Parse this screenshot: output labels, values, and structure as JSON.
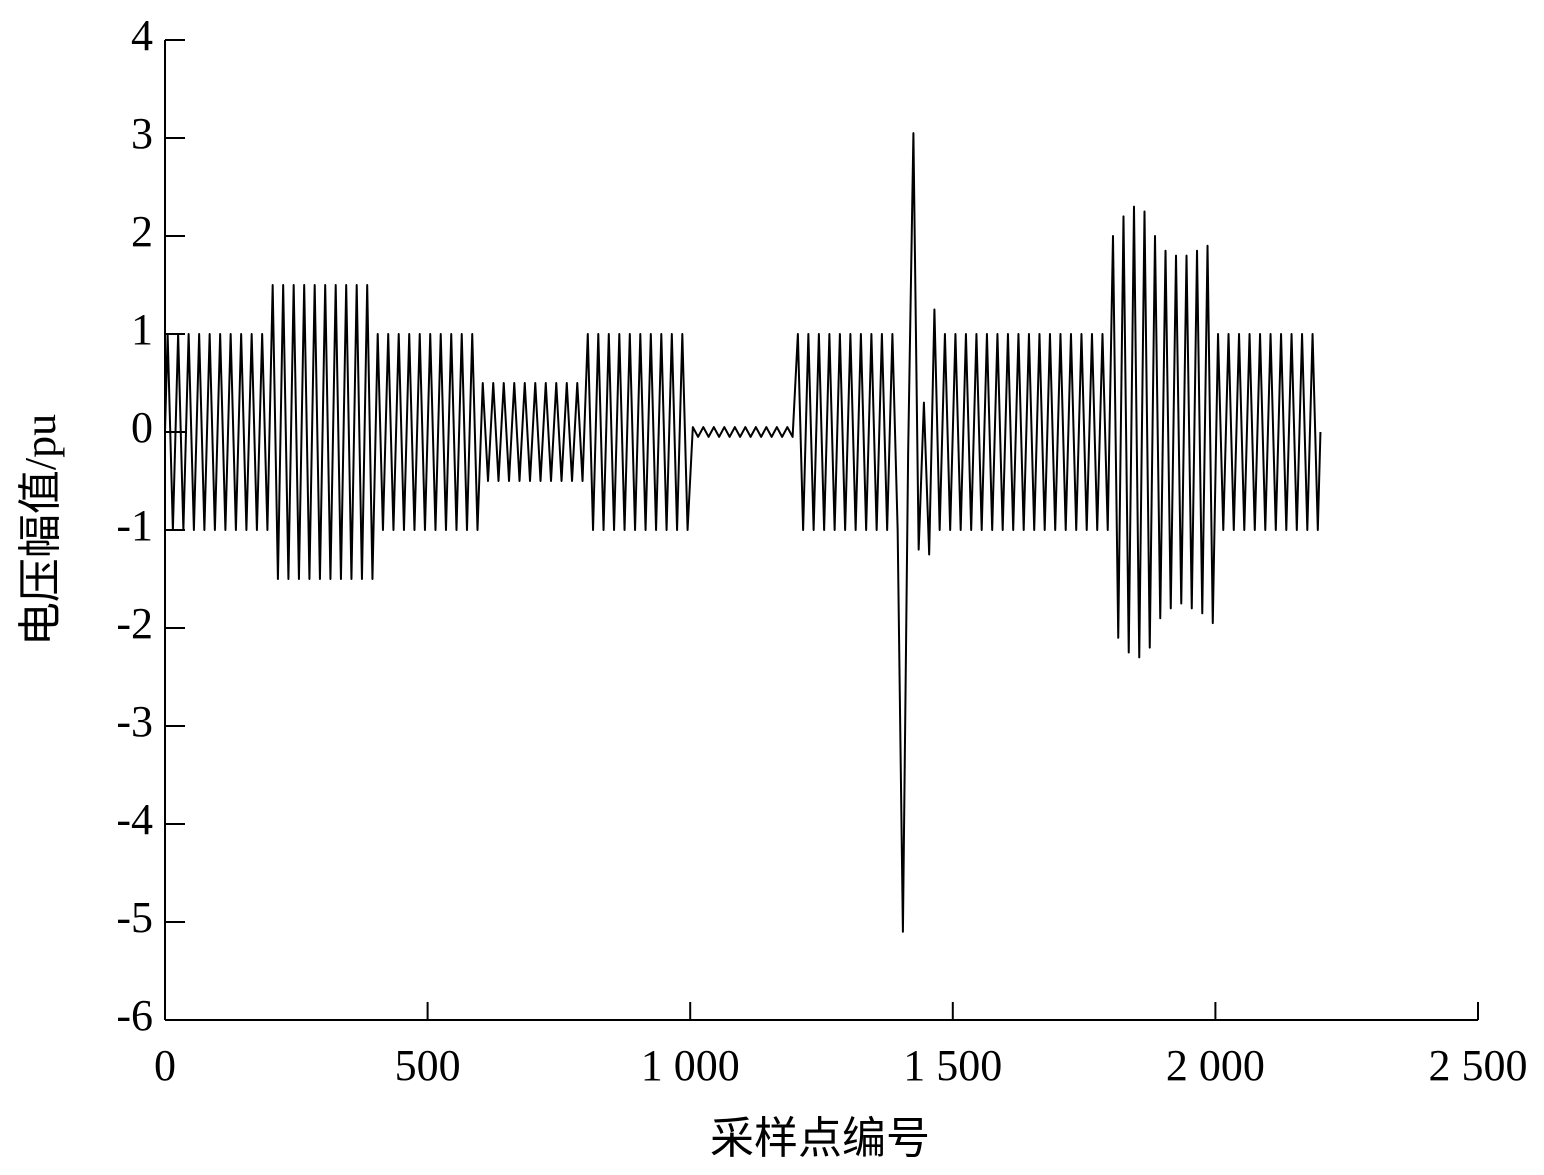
{
  "chart_data": {
    "type": "line",
    "x_label": "采样点编号",
    "y_label": "电压幅值/pu",
    "color": "#000000",
    "xlim": [
      0,
      2500
    ],
    "xticks": [
      0,
      500,
      {
        "value": 1000,
        "label": "1 000"
      },
      {
        "value": 1500,
        "label": "1 500"
      },
      {
        "value": 2000,
        "label": "2 000"
      },
      {
        "value": 2500,
        "label": "2 500"
      }
    ],
    "ylim": [
      -6,
      4
    ],
    "yticks": [
      -6,
      -5,
      -4,
      -3,
      -2,
      -1,
      0,
      1,
      2,
      3,
      4
    ],
    "x": [
      0,
      5,
      15,
      25,
      35,
      45,
      55,
      65,
      75,
      85,
      95,
      105,
      115,
      125,
      135,
      145,
      155,
      165,
      175,
      185,
      195,
      205,
      215,
      225,
      235,
      245,
      255,
      265,
      275,
      285,
      295,
      305,
      315,
      325,
      335,
      345,
      355,
      365,
      375,
      385,
      395,
      405,
      415,
      425,
      435,
      445,
      455,
      465,
      475,
      485,
      495,
      505,
      515,
      525,
      535,
      545,
      555,
      565,
      575,
      585,
      595,
      605,
      615,
      625,
      635,
      645,
      655,
      665,
      675,
      685,
      695,
      705,
      715,
      725,
      735,
      745,
      755,
      765,
      775,
      785,
      795,
      805,
      815,
      825,
      835,
      845,
      855,
      865,
      875,
      885,
      895,
      905,
      915,
      925,
      935,
      945,
      955,
      965,
      975,
      985,
      995,
      1005,
      1015,
      1025,
      1035,
      1045,
      1055,
      1065,
      1075,
      1085,
      1095,
      1105,
      1115,
      1125,
      1135,
      1145,
      1155,
      1165,
      1175,
      1185,
      1195,
      1205,
      1215,
      1225,
      1235,
      1245,
      1255,
      1265,
      1275,
      1285,
      1295,
      1305,
      1315,
      1325,
      1335,
      1345,
      1355,
      1365,
      1375,
      1385,
      1395,
      1405,
      1415,
      1425,
      1435,
      1445,
      1455,
      1465,
      1475,
      1485,
      1495,
      1505,
      1515,
      1525,
      1535,
      1545,
      1555,
      1565,
      1575,
      1585,
      1595,
      1605,
      1615,
      1625,
      1635,
      1645,
      1655,
      1665,
      1675,
      1685,
      1695,
      1705,
      1715,
      1725,
      1735,
      1745,
      1755,
      1765,
      1775,
      1785,
      1795,
      1805,
      1815,
      1825,
      1835,
      1845,
      1855,
      1865,
      1875,
      1885,
      1895,
      1905,
      1915,
      1925,
      1935,
      1945,
      1955,
      1965,
      1975,
      1985,
      1995,
      2005,
      2015,
      2025,
      2035,
      2045,
      2055,
      2065,
      2075,
      2085,
      2095,
      2105,
      2115,
      2125,
      2135,
      2145,
      2155,
      2165,
      2175,
      2185,
      2195,
      2200
    ],
    "values": [
      0,
      1,
      -1,
      1,
      -1,
      1,
      -1,
      1,
      -1,
      1,
      -1,
      1,
      -1,
      1,
      -1,
      1,
      -1,
      1,
      -1,
      1,
      -1,
      1.5,
      -1.5,
      1.5,
      -1.5,
      1.5,
      -1.5,
      1.5,
      -1.5,
      1.5,
      -1.5,
      1.5,
      -1.5,
      1.5,
      -1.5,
      1.5,
      -1.5,
      1.5,
      -1.5,
      1.5,
      -1.5,
      1,
      -1,
      1,
      -1,
      1,
      -1,
      1,
      -1,
      1,
      -1,
      1,
      -1,
      1,
      -1,
      1,
      -1,
      1,
      -1,
      1,
      -1,
      0.5,
      -0.5,
      0.5,
      -0.5,
      0.5,
      -0.5,
      0.5,
      -0.5,
      0.5,
      -0.5,
      0.5,
      -0.5,
      0.5,
      -0.5,
      0.5,
      -0.5,
      0.5,
      -0.5,
      0.5,
      -0.5,
      1,
      -1,
      1,
      -1,
      1,
      -1,
      1,
      -1,
      1,
      -1,
      1,
      -1,
      1,
      -1,
      1,
      -1,
      1,
      -1,
      1,
      -1,
      0.05,
      -0.05,
      0.05,
      -0.05,
      0.05,
      -0.05,
      0.05,
      -0.05,
      0.05,
      -0.05,
      0.05,
      -0.05,
      0.05,
      -0.05,
      0.05,
      -0.05,
      0.05,
      -0.05,
      0.05,
      -0.05,
      1,
      -1,
      1,
      -1,
      1,
      -1,
      1,
      -1,
      1,
      -1,
      1,
      -1,
      1,
      -1,
      1,
      -1,
      1,
      -1,
      1,
      -1,
      -5.1,
      -0.2,
      3.05,
      -1.2,
      0.3,
      -1.25,
      1.25,
      -1,
      1,
      -1,
      1,
      -1,
      1,
      -1,
      1,
      -1,
      1,
      -1,
      1,
      -1,
      1,
      -1,
      1,
      -1,
      1,
      -1,
      1,
      -1,
      1,
      -1,
      1,
      -1,
      1,
      -1,
      1,
      -1,
      1,
      -1,
      1,
      -1,
      2,
      -2.1,
      2.2,
      -2.25,
      2.3,
      -2.3,
      2.25,
      -2.2,
      2,
      -1.9,
      1.85,
      -1.8,
      1.8,
      -1.75,
      1.8,
      -1.8,
      1.85,
      -1.85,
      1.9,
      -1.95,
      1,
      -1,
      1,
      -1,
      1,
      -1,
      1,
      -1,
      1,
      -1,
      1,
      -1,
      1,
      -1,
      1,
      -1,
      1,
      -1,
      1,
      -1,
      0
    ]
  }
}
